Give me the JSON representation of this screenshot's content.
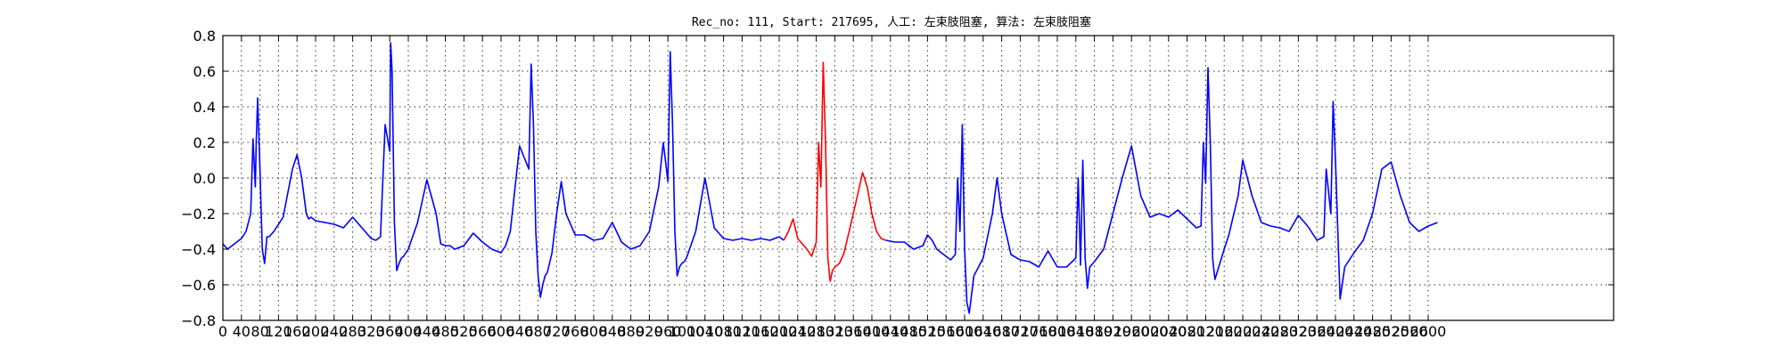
{
  "chart_data": {
    "type": "line",
    "title": "Rec_no: 111, Start: 217695, 人工: 左束肢阻塞, 算法: 左束肢阻塞",
    "xlabel": "",
    "ylabel": "",
    "xlim": [
      0,
      3000
    ],
    "ylim": [
      -0.8,
      0.8
    ],
    "grid": true,
    "x_ticks": [
      0,
      40,
      80,
      120,
      160,
      200,
      240,
      280,
      320,
      360,
      400,
      440,
      480,
      520,
      560,
      600,
      640,
      680,
      720,
      760,
      800,
      840,
      880,
      920,
      960,
      1000,
      1040,
      1080,
      1120,
      1160,
      1200,
      1240,
      1280,
      1320,
      1360,
      1400,
      1440,
      1480,
      1520,
      1560,
      1600,
      1640,
      1680,
      1720,
      1760,
      1800,
      1840,
      1880,
      1920,
      1960,
      2000,
      2040,
      2080,
      2120,
      2160,
      2200,
      2240,
      2280,
      2320,
      2360,
      2400,
      2440,
      2480,
      2520,
      2560,
      2600
    ],
    "x_tick_labels": [
      "0",
      "40",
      "80",
      "120",
      "160",
      "200",
      "240",
      "280",
      "320",
      "360",
      "400",
      "440",
      "480",
      "520",
      "560",
      "600",
      "640",
      "680",
      "720",
      "760",
      "800",
      "840",
      "880",
      "920",
      "960",
      "1000",
      "1040",
      "1080",
      "1120",
      "1160",
      "1200",
      "1240",
      "1280",
      "1320",
      "1360",
      "1400",
      "1440",
      "1480",
      "1520",
      "1560",
      "1600",
      "1640",
      "1680",
      "1720",
      "1760",
      "1800",
      "1840",
      "1880",
      "1920",
      "1960",
      "2000",
      "2040",
      "2080",
      "2120",
      "2160",
      "2200",
      "2240",
      "2280",
      "2320",
      "2360",
      "2400",
      "2440",
      "2480",
      "2520",
      "2560",
      "2600"
    ],
    "y_ticks": [
      -0.8,
      -0.6,
      -0.4,
      -0.2,
      0.0,
      0.2,
      0.4,
      0.6,
      0.8
    ],
    "y_tick_labels": [
      "−0.8",
      "−0.6",
      "−0.4",
      "−0.2",
      "0.0",
      "0.2",
      "0.4",
      "0.6",
      "0.8"
    ],
    "series": [
      {
        "color": "#0000ff",
        "x": [
          0,
          10,
          20,
          30,
          40,
          50,
          60,
          65,
          70,
          72,
          75,
          80,
          85,
          90,
          95,
          100,
          110,
          130,
          150,
          160,
          170,
          180,
          185,
          190,
          200,
          220,
          240,
          260,
          280,
          300,
          320,
          330,
          340,
          350,
          360,
          362,
          365,
          370,
          375,
          380,
          385,
          390,
          400,
          420,
          440,
          460,
          470,
          480,
          490,
          500,
          520,
          540,
          560,
          580,
          600,
          610,
          620,
          640,
          660,
          665,
          670,
          675,
          680,
          685,
          690,
          695,
          700,
          710,
          720,
          730,
          740,
          760,
          780,
          800,
          820,
          840,
          860,
          880,
          900,
          920,
          940,
          950,
          960,
          965,
          970,
          975,
          980,
          985,
          990,
          995,
          1000,
          1020,
          1040,
          1060,
          1080,
          1100,
          1120,
          1140,
          1160,
          1180,
          1200,
          1210
        ],
        "y": [
          -0.37,
          -0.4,
          -0.38,
          -0.36,
          -0.34,
          -0.3,
          -0.2,
          0.22,
          -0.05,
          0.2,
          0.45,
          0.05,
          -0.4,
          -0.48,
          -0.33,
          -0.33,
          -0.3,
          -0.22,
          0.05,
          0.13,
          0.0,
          -0.2,
          -0.23,
          -0.22,
          -0.24,
          -0.25,
          -0.26,
          -0.28,
          -0.22,
          -0.28,
          -0.34,
          -0.35,
          -0.33,
          0.3,
          0.15,
          0.76,
          0.6,
          -0.25,
          -0.52,
          -0.48,
          -0.45,
          -0.44,
          -0.4,
          -0.25,
          -0.01,
          -0.2,
          -0.37,
          -0.38,
          -0.38,
          -0.4,
          -0.38,
          -0.31,
          -0.36,
          -0.4,
          -0.42,
          -0.38,
          -0.3,
          0.18,
          0.05,
          0.64,
          0.3,
          -0.3,
          -0.55,
          -0.67,
          -0.6,
          -0.55,
          -0.53,
          -0.42,
          -0.2,
          -0.02,
          -0.2,
          -0.32,
          -0.32,
          -0.35,
          -0.34,
          -0.25,
          -0.36,
          -0.4,
          -0.38,
          -0.3,
          -0.05,
          0.2,
          -0.02,
          0.71,
          0.3,
          -0.3,
          -0.55,
          -0.5,
          -0.48,
          -0.47,
          -0.45,
          -0.3,
          0.0,
          -0.28,
          -0.34,
          -0.35,
          -0.34,
          -0.35,
          -0.34,
          -0.35,
          -0.33,
          -0.35
        ]
      },
      {
        "color": "#ff0000",
        "x": [
          1210,
          1220,
          1230,
          1240,
          1250,
          1260,
          1270,
          1280,
          1285,
          1290,
          1295,
          1300,
          1305,
          1310,
          1315,
          1320,
          1330,
          1340,
          1360,
          1380,
          1390,
          1400,
          1410,
          1420,
          1430
        ],
        "y": [
          -0.35,
          -0.3,
          -0.23,
          -0.34,
          -0.37,
          -0.4,
          -0.44,
          -0.36,
          0.2,
          -0.05,
          0.65,
          0.2,
          -0.45,
          -0.58,
          -0.52,
          -0.5,
          -0.48,
          -0.42,
          -0.2,
          0.03,
          -0.05,
          -0.2,
          -0.3,
          -0.34,
          -0.35
        ]
      },
      {
        "color": "#0000ff",
        "x": [
          1430,
          1450,
          1470,
          1490,
          1510,
          1520,
          1530,
          1540,
          1560,
          1570,
          1580,
          1585,
          1590,
          1595,
          1600,
          1605,
          1610,
          1620,
          1640,
          1660,
          1670,
          1680,
          1700,
          1720,
          1740,
          1760,
          1780,
          1800,
          1820,
          1840,
          1845,
          1850,
          1855,
          1860,
          1865,
          1870,
          1880,
          1900,
          1920,
          1940,
          1960,
          1980,
          2000,
          2020,
          2040,
          2060,
          2080,
          2100,
          2110,
          2115,
          2120,
          2125,
          2130,
          2135,
          2140,
          2160,
          2170,
          2190,
          2200,
          2220,
          2240,
          2260,
          2280,
          2300,
          2320,
          2340,
          2360,
          2375,
          2380,
          2390,
          2395,
          2400,
          2410,
          2420,
          2440,
          2460,
          2480,
          2500,
          2520,
          2540,
          2560,
          2580,
          2600,
          2620
        ],
        "y": [
          -0.35,
          -0.36,
          -0.36,
          -0.4,
          -0.38,
          -0.32,
          -0.35,
          -0.4,
          -0.44,
          -0.46,
          -0.43,
          0.0,
          -0.3,
          0.3,
          -0.4,
          -0.7,
          -0.76,
          -0.55,
          -0.45,
          -0.2,
          0.0,
          -0.2,
          -0.43,
          -0.46,
          -0.47,
          -0.5,
          -0.41,
          -0.5,
          -0.5,
          -0.45,
          -0.0,
          -0.49,
          0.1,
          -0.45,
          -0.62,
          -0.5,
          -0.47,
          -0.4,
          -0.2,
          0.0,
          0.18,
          -0.1,
          -0.22,
          -0.2,
          -0.22,
          -0.18,
          -0.23,
          -0.28,
          -0.27,
          0.2,
          -0.03,
          0.62,
          0.2,
          -0.45,
          -0.57,
          -0.4,
          -0.32,
          -0.1,
          0.1,
          -0.1,
          -0.25,
          -0.27,
          -0.28,
          -0.3,
          -0.21,
          -0.27,
          -0.35,
          -0.33,
          0.05,
          -0.2,
          0.43,
          0.1,
          -0.68,
          -0.5,
          -0.42,
          -0.35,
          -0.2,
          0.05,
          0.09,
          -0.1,
          -0.25,
          -0.3,
          -0.27,
          -0.25
        ]
      }
    ]
  }
}
